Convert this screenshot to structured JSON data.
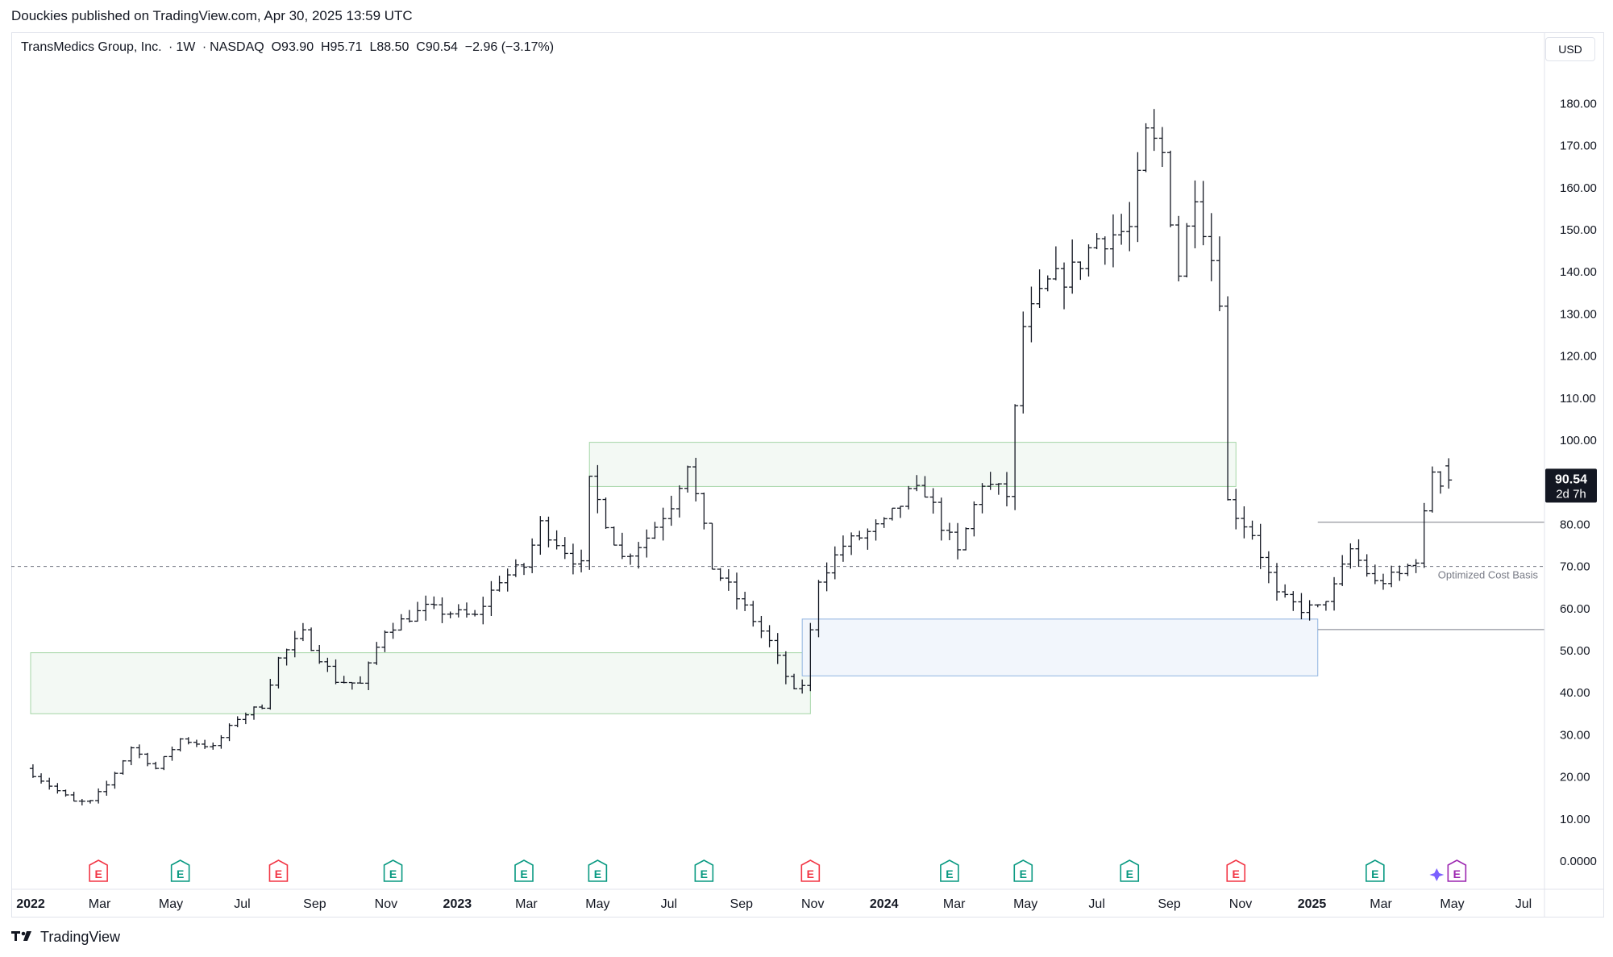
{
  "header": {
    "published_line": "Douckies published on TradingView.com, Apr 30, 2025 13:59 UTC"
  },
  "legend": {
    "symbol": "TransMedics Group, Inc.",
    "interval": "1W",
    "exchange": "NASDAQ",
    "open": "O93.90",
    "high": "H95.71",
    "low": "L88.50",
    "close": "C90.54",
    "change": "−2.96 (−3.17%)"
  },
  "currency_button": "USD",
  "price_tag": {
    "price": "90.54",
    "countdown": "2d 7h"
  },
  "footer": {
    "brand": "TradingView"
  },
  "colors": {
    "bars": "#131722",
    "supply_zone_fill": "#f3f9f4",
    "supply_zone_border": "#a5d6a7",
    "demand_zone_fill": "#f2f6fc",
    "demand_zone_border": "#90b4e0",
    "earnings_red": "#f23645",
    "earnings_green": "#089981",
    "ai_purple": "#9c27b0"
  },
  "chart_data": {
    "type": "ohlc",
    "y_axis": {
      "range": [
        0,
        195
      ],
      "ticks": [
        "0.0000",
        "10.00",
        "20.00",
        "30.00",
        "40.00",
        "50.00",
        "60.00",
        "70.00",
        "80.00",
        "90.00",
        "100.00",
        "110.00",
        "120.00",
        "130.00",
        "140.00",
        "150.00",
        "160.00",
        "170.00",
        "180.00"
      ],
      "tick_values": [
        0,
        10,
        20,
        30,
        40,
        50,
        60,
        70,
        80,
        90,
        100,
        110,
        120,
        130,
        140,
        150,
        160,
        170,
        180
      ]
    },
    "x_axis": {
      "labels": [
        {
          "label": "2022",
          "date": "2022-01-01",
          "bold": true
        },
        {
          "label": "Mar",
          "date": "2022-03-01"
        },
        {
          "label": "May",
          "date": "2022-05-01"
        },
        {
          "label": "Jul",
          "date": "2022-07-01"
        },
        {
          "label": "Sep",
          "date": "2022-09-01"
        },
        {
          "label": "Nov",
          "date": "2022-11-01"
        },
        {
          "label": "2023",
          "date": "2023-01-01",
          "bold": true
        },
        {
          "label": "Mar",
          "date": "2023-03-01"
        },
        {
          "label": "May",
          "date": "2023-05-01"
        },
        {
          "label": "Jul",
          "date": "2023-07-01"
        },
        {
          "label": "Sep",
          "date": "2023-09-01"
        },
        {
          "label": "Nov",
          "date": "2023-11-01"
        },
        {
          "label": "2024",
          "date": "2024-01-01",
          "bold": true
        },
        {
          "label": "Mar",
          "date": "2024-03-01"
        },
        {
          "label": "May",
          "date": "2024-05-01"
        },
        {
          "label": "Jul",
          "date": "2024-07-01"
        },
        {
          "label": "Sep",
          "date": "2024-09-01"
        },
        {
          "label": "Nov",
          "date": "2024-11-01"
        },
        {
          "label": "2025",
          "date": "2025-01-01",
          "bold": true
        },
        {
          "label": "Mar",
          "date": "2025-03-01"
        },
        {
          "label": "May",
          "date": "2025-05-01"
        },
        {
          "label": "Jul",
          "date": "2025-07-01"
        }
      ]
    },
    "lines": [
      {
        "name": "Optimized Cost Basis",
        "value": 70,
        "style": "dashed"
      },
      {
        "value": 80.5,
        "from": "2025-01-06",
        "style": "solid"
      },
      {
        "value": 55,
        "from": "2025-01-06",
        "style": "solid"
      }
    ],
    "zones": [
      {
        "kind": "supply",
        "from": "2022-01-01",
        "to": "2023-10-30",
        "low": 35,
        "high": 49.5
      },
      {
        "kind": "supply",
        "from": "2023-04-24",
        "to": "2024-10-28",
        "low": 89,
        "high": 99.5
      },
      {
        "kind": "demand",
        "from": "2023-10-23",
        "to": "2025-01-06",
        "low": 44,
        "high": 57.5
      }
    ],
    "earnings": [
      {
        "date": "2022-02-28",
        "type": "miss"
      },
      {
        "date": "2022-05-09",
        "type": "beat"
      },
      {
        "date": "2022-08-01",
        "type": "miss"
      },
      {
        "date": "2022-11-07",
        "type": "beat"
      },
      {
        "date": "2023-02-27",
        "type": "beat"
      },
      {
        "date": "2023-05-01",
        "type": "beat"
      },
      {
        "date": "2023-07-31",
        "type": "beat"
      },
      {
        "date": "2023-10-30",
        "type": "miss"
      },
      {
        "date": "2024-02-26",
        "type": "beat"
      },
      {
        "date": "2024-04-29",
        "type": "beat"
      },
      {
        "date": "2024-07-29",
        "type": "beat"
      },
      {
        "date": "2024-10-28",
        "type": "miss"
      },
      {
        "date": "2025-02-24",
        "type": "beat"
      },
      {
        "date": "2025-05-05",
        "type": "upcoming"
      }
    ],
    "anchors": [
      [
        "2022-01-03",
        22
      ],
      [
        "2022-02-14",
        14
      ],
      [
        "2022-02-28",
        14
      ],
      [
        "2022-03-14",
        18
      ],
      [
        "2022-04-04",
        27
      ],
      [
        "2022-04-25",
        22
      ],
      [
        "2022-05-16",
        29
      ],
      [
        "2022-06-13",
        27
      ],
      [
        "2022-07-04",
        34
      ],
      [
        "2022-07-25",
        37
      ],
      [
        "2022-08-08",
        48
      ],
      [
        "2022-08-29",
        54
      ],
      [
        "2022-09-26",
        43
      ],
      [
        "2022-10-17",
        42
      ],
      [
        "2022-11-07",
        55
      ],
      [
        "2022-12-12",
        60
      ],
      [
        "2023-01-23",
        58
      ],
      [
        "2023-02-13",
        67
      ],
      [
        "2023-03-06",
        70
      ],
      [
        "2023-03-20",
        80
      ],
      [
        "2023-04-24",
        70
      ],
      [
        "2023-05-01",
        90
      ],
      [
        "2023-05-29",
        72
      ],
      [
        "2023-06-19",
        77
      ],
      [
        "2023-07-10",
        85
      ],
      [
        "2023-07-24",
        95
      ],
      [
        "2023-08-14",
        70
      ],
      [
        "2023-09-11",
        60
      ],
      [
        "2023-10-02",
        52
      ],
      [
        "2023-10-23",
        40
      ],
      [
        "2023-10-30",
        42
      ],
      [
        "2023-11-13",
        67
      ],
      [
        "2023-12-04",
        75
      ],
      [
        "2024-01-08",
        80
      ],
      [
        "2024-01-29",
        87
      ],
      [
        "2024-02-12",
        88
      ],
      [
        "2024-02-26",
        80
      ],
      [
        "2024-03-11",
        73
      ],
      [
        "2024-04-01",
        90
      ],
      [
        "2024-04-22",
        87
      ],
      [
        "2024-05-06",
        127
      ],
      [
        "2024-05-27",
        137
      ],
      [
        "2024-06-17",
        140
      ],
      [
        "2024-07-08",
        148
      ],
      [
        "2024-08-05",
        150
      ],
      [
        "2024-08-19",
        172
      ],
      [
        "2024-09-02",
        168
      ],
      [
        "2024-09-16",
        140
      ],
      [
        "2024-09-30",
        160
      ],
      [
        "2024-10-21",
        135
      ],
      [
        "2024-10-28",
        85
      ],
      [
        "2024-11-18",
        78
      ],
      [
        "2024-12-09",
        63
      ],
      [
        "2024-12-30",
        60
      ],
      [
        "2025-01-13",
        60
      ],
      [
        "2025-01-27",
        65
      ],
      [
        "2025-02-10",
        74
      ],
      [
        "2025-03-03",
        66
      ],
      [
        "2025-03-24",
        68
      ],
      [
        "2025-04-07",
        72
      ],
      [
        "2025-04-14",
        82
      ],
      [
        "2025-04-21",
        93
      ],
      [
        "2025-04-28",
        90.54
      ]
    ],
    "last_bar": {
      "date": "2025-04-28",
      "open": 93.9,
      "high": 95.71,
      "low": 88.5,
      "close": 90.54
    }
  }
}
